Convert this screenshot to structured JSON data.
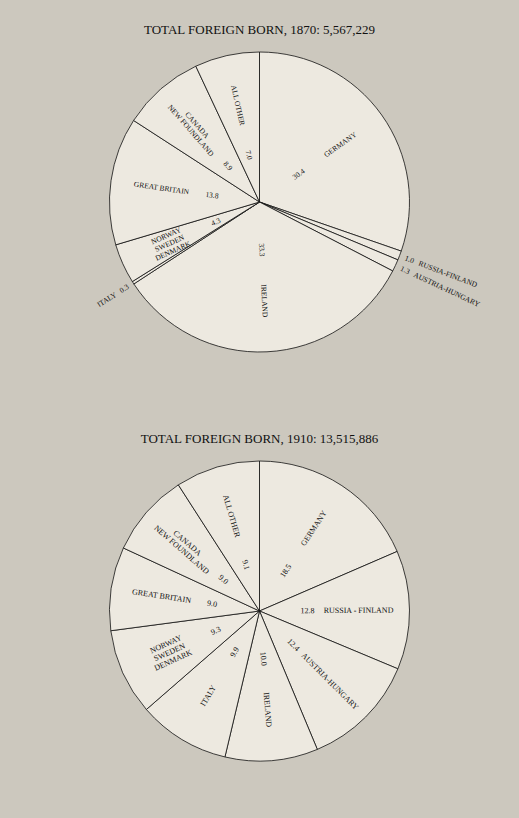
{
  "chart_data": [
    {
      "type": "pie",
      "title": "TOTAL FOREIGN BORN, 1870: 5,567,229",
      "categories": [
        "GERMANY",
        "RUSSIA-FINLAND",
        "AUSTRIA-HUNGARY",
        "IRELAND",
        "ITALY",
        "NORWAY\nSWEDEN\nDENMARK",
        "GREAT BRITAIN",
        "CANADA\nNEW FOUNDLAND",
        "ALL OTHER"
      ],
      "values": [
        30.4,
        1.0,
        1.3,
        33.3,
        0.3,
        4.3,
        13.8,
        8.9,
        7.0
      ],
      "value_labels": [
        "30.4",
        "1.0",
        "1.3",
        "33.3",
        "0.3",
        "4.3",
        "13.8",
        "8.9",
        "7.0"
      ],
      "color": "#ede9e0",
      "data_labels": true
    },
    {
      "type": "pie",
      "title": "TOTAL FOREIGN BORN, 1910: 13,515,886",
      "categories": [
        "GERMANY",
        "RUSSIA - FINLAND",
        "AUSTRIA-HUNGARY",
        "IRELAND",
        "ITALY",
        "NORWAY\nSWEDEN\nDENMARK",
        "GREAT BRITAIN",
        "CANADA\nNEW FOUNDLAND",
        "ALL OTHER"
      ],
      "values": [
        18.5,
        12.8,
        12.4,
        10.0,
        9.9,
        9.3,
        9.0,
        9.0,
        9.1
      ],
      "value_labels": [
        "18.5",
        "12.8",
        "12.4",
        "10.0",
        "9.9",
        "9.3",
        "9.0",
        "9.0",
        "9.1"
      ],
      "color": "#ede9e0",
      "data_labels": true
    }
  ]
}
